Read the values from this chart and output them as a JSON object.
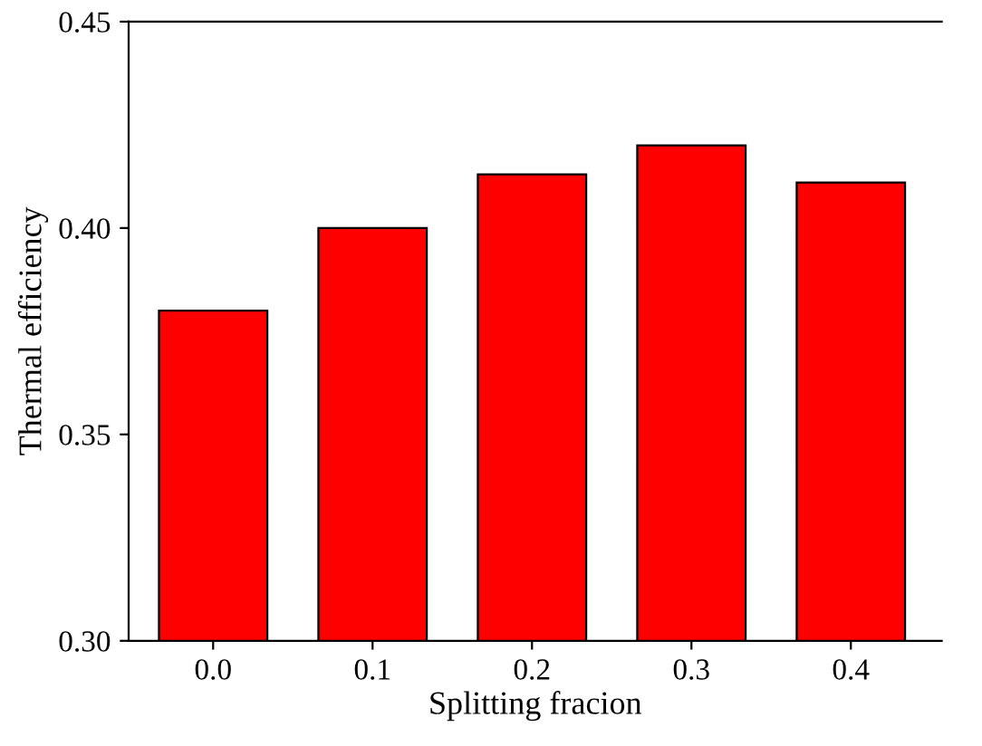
{
  "chart_data": {
    "type": "bar",
    "xlabel": "Splitting fracion",
    "ylabel": "Thermal efficiency",
    "categories": [
      "0.0",
      "0.1",
      "0.2",
      "0.3",
      "0.4"
    ],
    "values": [
      0.38,
      0.4,
      0.413,
      0.42,
      0.411
    ],
    "color": "#ff0000",
    "ylim": [
      0.3,
      0.45
    ],
    "yticks": [
      {
        "value": 0.3,
        "label": "0.30"
      },
      {
        "value": 0.35,
        "label": "0.35"
      },
      {
        "value": 0.4,
        "label": "0.40"
      },
      {
        "value": 0.45,
        "label": "0.45"
      }
    ],
    "grid": false
  }
}
